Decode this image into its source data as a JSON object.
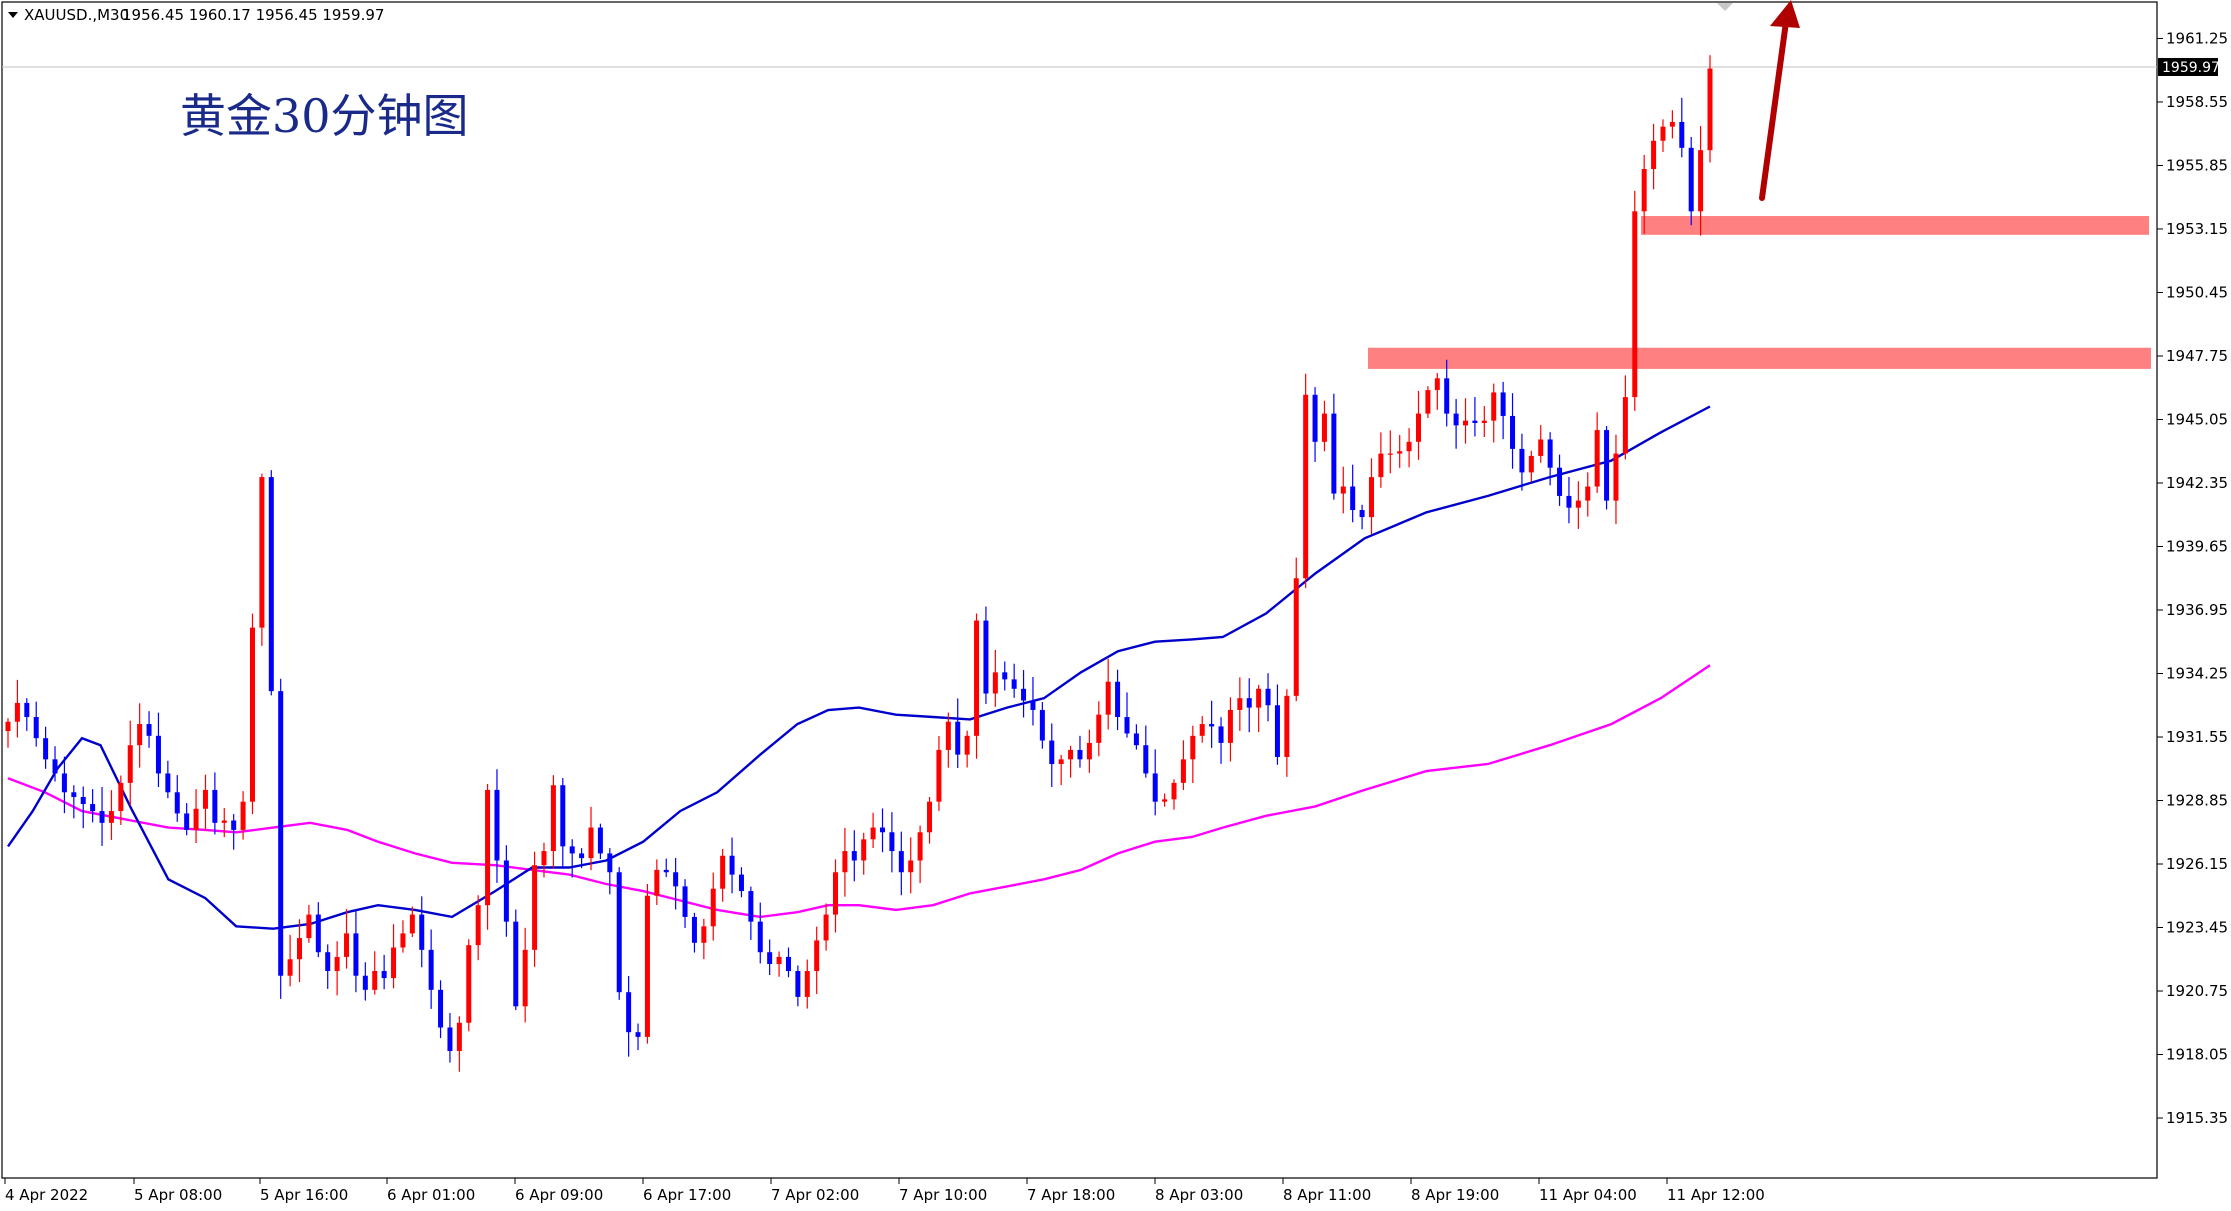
{
  "header": {
    "symbol": "XAUUSD.,M30",
    "ohlc": "1956.45 1960.17 1956.45 1959.97",
    "dropdown_icon": "triangle-down-icon"
  },
  "annotation": {
    "title": "黄金30分钟图"
  },
  "price_label": "1959.97",
  "colors": {
    "bull": "#ff0000",
    "bear": "#0000ff",
    "ma_fast": "#0000cc",
    "ma_slow": "#ff00ff",
    "zone": "#ff8080",
    "arrow": "#b00000",
    "title": "#1a2a8a"
  },
  "chart_data": {
    "type": "candlestick",
    "title": "黄金30分钟图",
    "ylim": [
      1912.8,
      1962.8
    ],
    "y_ticks": [
      "1961.25",
      "1958.55",
      "1955.85",
      "1953.15",
      "1950.45",
      "1947.75",
      "1945.05",
      "1942.35",
      "1939.65",
      "1936.95",
      "1934.25",
      "1931.55",
      "1928.85",
      "1926.15",
      "1923.45",
      "1920.75",
      "1918.05",
      "1915.35"
    ],
    "x_labels": [
      "4 Apr 2022",
      "5 Apr 08:00",
      "5 Apr 16:00",
      "6 Apr 01:00",
      "6 Apr 09:00",
      "6 Apr 17:00",
      "7 Apr 02:00",
      "7 Apr 10:00",
      "7 Apr 18:00",
      "8 Apr 03:00",
      "8 Apr 11:00",
      "8 Apr 19:00",
      "11 Apr 04:00",
      "11 Apr 12:00"
    ],
    "last_price": 1959.97,
    "zones": [
      {
        "low": 1947.2,
        "high": 1948.1
      },
      {
        "low": 1952.9,
        "high": 1953.7
      }
    ],
    "closes": [
      1932.2,
      1933.0,
      1932.4,
      1931.5,
      1930.6,
      1930.0,
      1929.2,
      1929.0,
      1928.7,
      1928.4,
      1927.9,
      1928.4,
      1929.6,
      1931.2,
      1932.1,
      1931.6,
      1930.0,
      1929.2,
      1928.3,
      1927.6,
      1928.5,
      1929.3,
      1927.9,
      1928.0,
      1927.6,
      1928.8,
      1936.2,
      1942.6,
      1933.5,
      1921.4,
      1922.1,
      1923.0,
      1924.0,
      1922.4,
      1921.6,
      1922.2,
      1923.2,
      1921.4,
      1920.8,
      1921.6,
      1921.3,
      1922.6,
      1923.2,
      1924.0,
      1922.5,
      1920.8,
      1919.2,
      1918.2,
      1919.4,
      1922.7,
      1924.4,
      1929.3,
      1926.3,
      1923.7,
      1920.1,
      1922.5,
      1926.1,
      1926.7,
      1929.5,
      1926.9,
      1926.6,
      1926.4,
      1927.7,
      1926.6,
      1925.8,
      1920.7,
      1919.0,
      1918.8,
      1924.8,
      1925.9,
      1925.8,
      1925.2,
      1923.9,
      1922.8,
      1923.5,
      1925.1,
      1926.5,
      1925.7,
      1925.0,
      1923.7,
      1922.4,
      1921.9,
      1922.2,
      1921.6,
      1920.5,
      1921.6,
      1922.9,
      1924.0,
      1925.8,
      1926.7,
      1926.3,
      1927.2,
      1927.7,
      1927.5,
      1926.7,
      1925.8,
      1926.3,
      1927.5,
      1928.8,
      1931.0,
      1932.2,
      1930.8,
      1931.6,
      1936.5,
      1933.4,
      1934.3,
      1934.0,
      1933.6,
      1933.1,
      1932.7,
      1931.4,
      1930.4,
      1930.6,
      1931.0,
      1930.6,
      1931.3,
      1932.5,
      1933.9,
      1932.4,
      1931.7,
      1931.2,
      1930.0,
      1928.8,
      1928.9,
      1929.6,
      1930.6,
      1931.6,
      1932.1,
      1932.0,
      1931.3,
      1932.7,
      1933.2,
      1932.8,
      1933.6,
      1932.9,
      1930.7,
      1933.3,
      1938.3,
      1946.1,
      1944.1,
      1945.3,
      1941.9,
      1942.2,
      1941.2,
      1940.9,
      1942.6,
      1943.6,
      1943.6,
      1943.7,
      1944.1,
      1945.3,
      1946.3,
      1946.8,
      1945.3,
      1944.8,
      1945.0,
      1944.9,
      1945.0,
      1946.2,
      1945.2,
      1943.8,
      1942.8,
      1943.5,
      1944.2,
      1943.0,
      1941.8,
      1941.3,
      1941.6,
      1942.2,
      1944.6,
      1941.6,
      1943.6,
      1946.0,
      1953.9,
      1955.7,
      1956.9,
      1957.5,
      1957.7,
      1956.6,
      1953.9,
      1956.5,
      1959.97
    ],
    "ma_fast": [
      [
        0,
        1926.9
      ],
      [
        20,
        1928.4
      ],
      [
        40,
        1930.2
      ],
      [
        60,
        1931.5
      ],
      [
        75,
        1931.2
      ],
      [
        100,
        1928.5
      ],
      [
        130,
        1925.5
      ],
      [
        160,
        1924.7
      ],
      [
        185,
        1923.5
      ],
      [
        215,
        1923.4
      ],
      [
        245,
        1923.6
      ],
      [
        275,
        1924.1
      ],
      [
        300,
        1924.4
      ],
      [
        330,
        1924.2
      ],
      [
        360,
        1923.9
      ],
      [
        395,
        1925.0
      ],
      [
        425,
        1926.0
      ],
      [
        455,
        1926.0
      ],
      [
        485,
        1926.3
      ],
      [
        515,
        1927.1
      ],
      [
        545,
        1928.4
      ],
      [
        575,
        1929.2
      ],
      [
        610,
        1930.8
      ],
      [
        640,
        1932.1
      ],
      [
        665,
        1932.7
      ],
      [
        690,
        1932.8
      ],
      [
        720,
        1932.5
      ],
      [
        750,
        1932.4
      ],
      [
        780,
        1932.3
      ],
      [
        810,
        1932.8
      ],
      [
        840,
        1933.2
      ],
      [
        870,
        1934.3
      ],
      [
        900,
        1935.2
      ],
      [
        930,
        1935.6
      ],
      [
        960,
        1935.7
      ],
      [
        985,
        1935.8
      ],
      [
        1020,
        1936.8
      ],
      [
        1060,
        1938.5
      ],
      [
        1100,
        1940.0
      ],
      [
        1150,
        1941.1
      ],
      [
        1200,
        1941.8
      ],
      [
        1250,
        1942.6
      ],
      [
        1300,
        1943.3
      ],
      [
        1340,
        1944.5
      ],
      [
        1380,
        1945.6
      ]
    ],
    "ma_slow": [
      [
        0,
        1929.8
      ],
      [
        30,
        1929.2
      ],
      [
        60,
        1928.4
      ],
      [
        100,
        1928.0
      ],
      [
        130,
        1927.7
      ],
      [
        160,
        1927.6
      ],
      [
        185,
        1927.5
      ],
      [
        215,
        1927.7
      ],
      [
        245,
        1927.9
      ],
      [
        275,
        1927.6
      ],
      [
        300,
        1927.1
      ],
      [
        330,
        1926.6
      ],
      [
        360,
        1926.2
      ],
      [
        395,
        1926.1
      ],
      [
        425,
        1925.9
      ],
      [
        455,
        1925.7
      ],
      [
        485,
        1925.3
      ],
      [
        515,
        1925.0
      ],
      [
        545,
        1924.6
      ],
      [
        575,
        1924.2
      ],
      [
        610,
        1923.9
      ],
      [
        640,
        1924.1
      ],
      [
        665,
        1924.4
      ],
      [
        690,
        1924.4
      ],
      [
        720,
        1924.2
      ],
      [
        750,
        1924.4
      ],
      [
        780,
        1924.9
      ],
      [
        810,
        1925.2
      ],
      [
        840,
        1925.5
      ],
      [
        870,
        1925.9
      ],
      [
        900,
        1926.6
      ],
      [
        930,
        1927.1
      ],
      [
        960,
        1927.3
      ],
      [
        985,
        1927.7
      ],
      [
        1020,
        1928.2
      ],
      [
        1060,
        1928.6
      ],
      [
        1100,
        1929.3
      ],
      [
        1150,
        1930.1
      ],
      [
        1200,
        1930.4
      ],
      [
        1250,
        1931.2
      ],
      [
        1300,
        1932.1
      ],
      [
        1340,
        1933.2
      ],
      [
        1380,
        1934.6
      ]
    ]
  }
}
